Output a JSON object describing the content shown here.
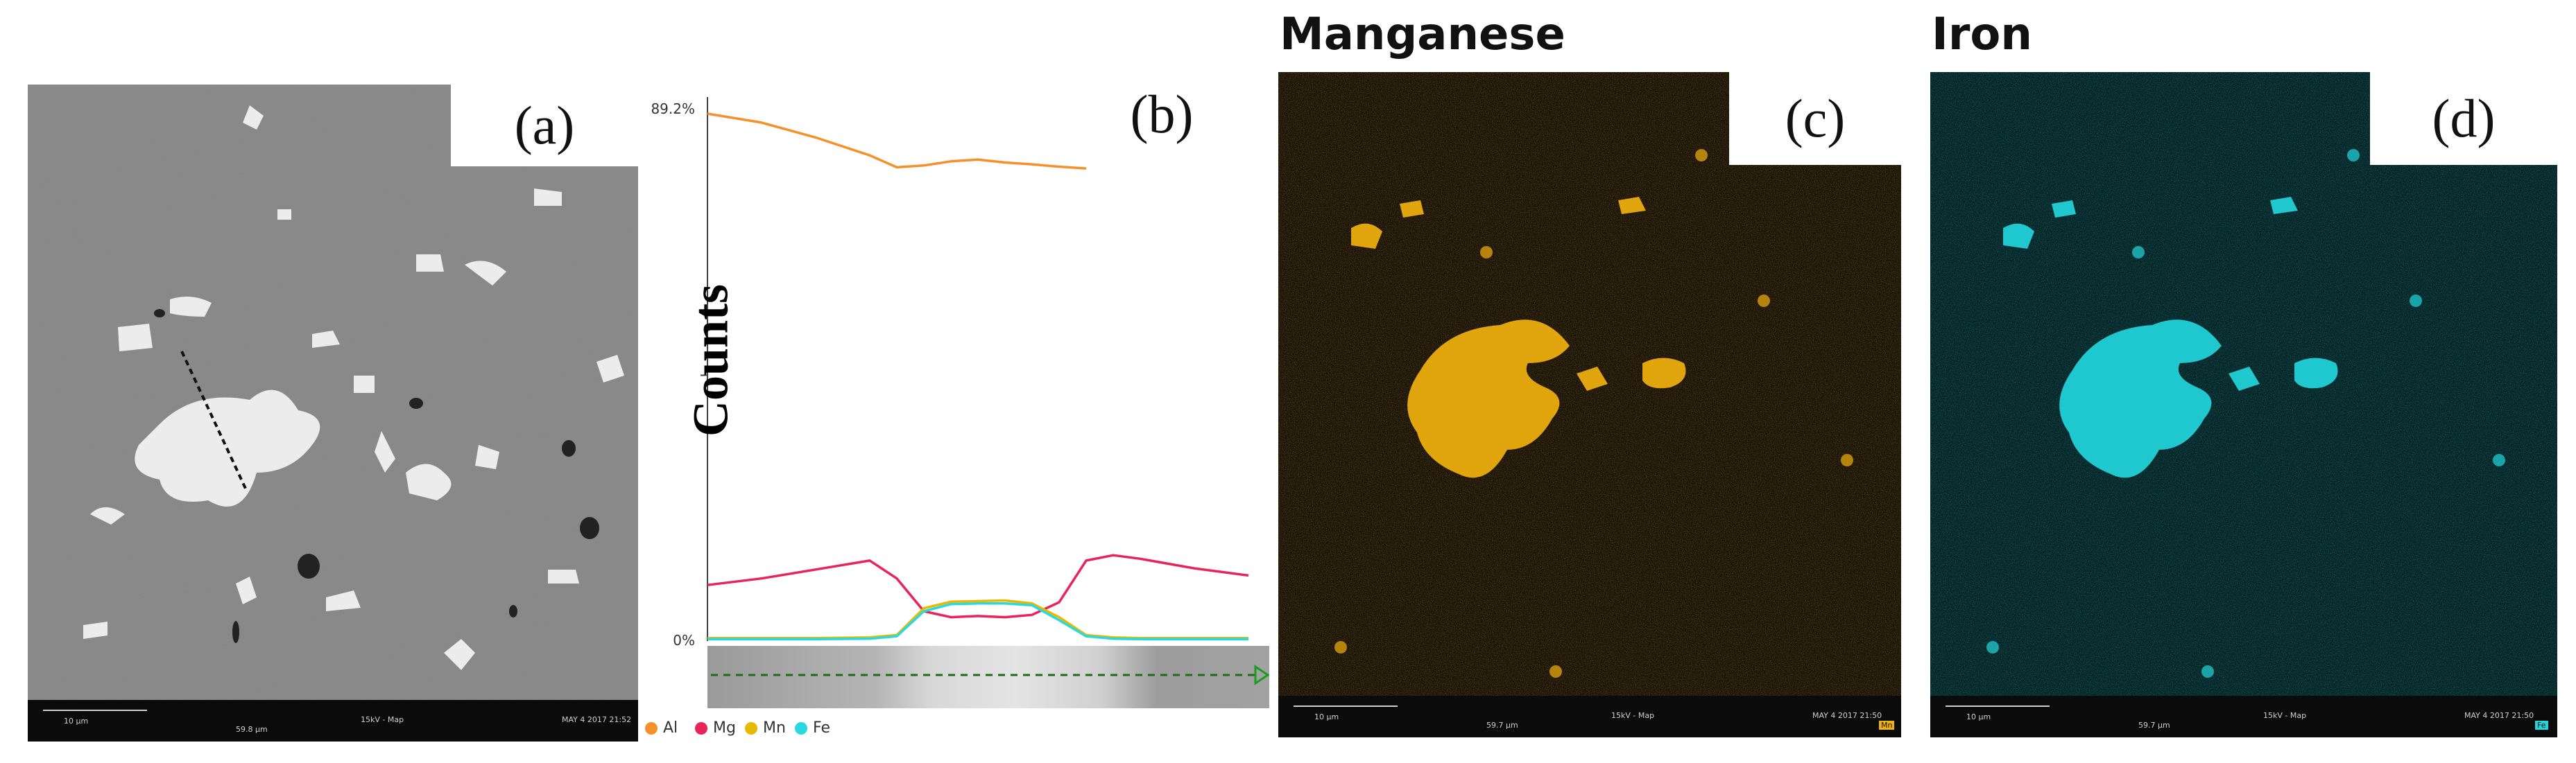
{
  "figure": {
    "panels": {
      "a": {
        "label": "(a)",
        "bar": {
          "scale": "10 µm",
          "field": "59.8 µm",
          "mode": "15kV - Map",
          "stamp": "MAY 4 2017 21:52"
        }
      },
      "b": {
        "label": "(b)"
      },
      "c": {
        "label": "(c)",
        "title": "Manganese",
        "bar": {
          "scale": "10 µm",
          "field": "59.7 µm",
          "mode": "15kV - Map",
          "stamp": "MAY 4 2017 21:50",
          "tag": "Mn"
        }
      },
      "d": {
        "label": "(d)",
        "title": "Iron",
        "bar": {
          "scale": "10 µm",
          "field": "59.7 µm",
          "mode": "15kV - Map",
          "stamp": "MAY 4 2017 21:50",
          "tag": "Fe"
        }
      }
    }
  },
  "chart_data": {
    "type": "line",
    "title": "",
    "ylabel": "Counts",
    "xlabel": "",
    "ytick_labels": [
      "89.2%",
      "0%"
    ],
    "ylim": [
      0,
      89.2
    ],
    "x": [
      0,
      0.1,
      0.2,
      0.3,
      0.35,
      0.4,
      0.45,
      0.5,
      0.55,
      0.6,
      0.65,
      0.7,
      0.75,
      0.8,
      0.9,
      1.0
    ],
    "series": [
      {
        "name": "Al",
        "color": "#f5902a",
        "x": [
          0,
          0.1,
          0.2,
          0.3,
          0.35,
          0.4,
          0.45,
          0.5,
          0.55,
          0.6,
          0.65,
          0.7
        ],
        "values": [
          88.5,
          87,
          84.5,
          81.5,
          79.5,
          79.8,
          80.5,
          80.8,
          80.3,
          80,
          79.6,
          79.3
        ]
      },
      {
        "name": "Mg",
        "color": "#e8245a",
        "values": [
          9.4,
          10.5,
          12,
          13.5,
          10.5,
          5,
          4,
          4.2,
          4,
          4.4,
          6.5,
          13.5,
          14.4,
          13.8,
          12.2,
          11
        ]
      },
      {
        "name": "Mn",
        "color": "#e8b900",
        "values": [
          0.5,
          0.5,
          0.5,
          0.6,
          1,
          5.5,
          6.6,
          6.7,
          6.8,
          6.3,
          4,
          1,
          0.6,
          0.5,
          0.5,
          0.5
        ]
      },
      {
        "name": "Fe",
        "color": "#2ad8e0",
        "values": [
          0.3,
          0.3,
          0.3,
          0.4,
          0.8,
          5,
          6.2,
          6.3,
          6.3,
          6,
          3.5,
          0.8,
          0.4,
          0.3,
          0.3,
          0.3
        ]
      }
    ],
    "legend": "bottom",
    "grid": false
  },
  "colors": {
    "mn_map": "#f1b10e",
    "fe_map": "#22d5dc",
    "map_bg": "#1a1209",
    "fe_bg": "#062628"
  }
}
